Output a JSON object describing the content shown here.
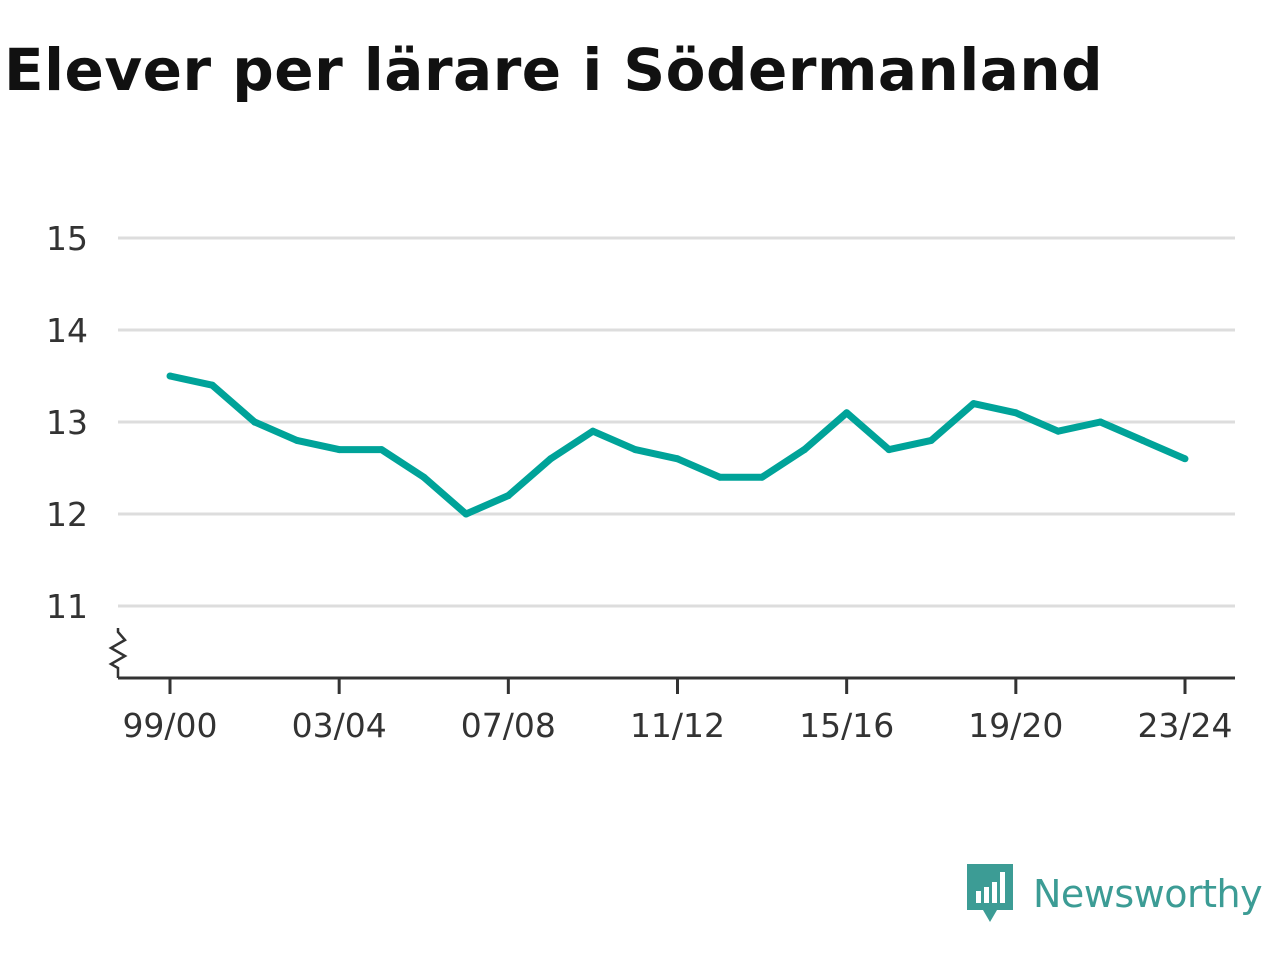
{
  "chart_data": {
    "type": "line",
    "title": "Elever per lärare i Södermanland",
    "x": [
      "99/00",
      "00/01",
      "01/02",
      "02/03",
      "03/04",
      "04/05",
      "05/06",
      "06/07",
      "07/08",
      "08/09",
      "09/10",
      "10/11",
      "11/12",
      "12/13",
      "13/14",
      "14/15",
      "15/16",
      "16/17",
      "17/18",
      "18/19",
      "19/20",
      "20/21",
      "21/22",
      "22/23",
      "23/24"
    ],
    "x_tick_labels": [
      "99/00",
      "03/04",
      "07/08",
      "11/12",
      "15/16",
      "19/20",
      "23/24"
    ],
    "series": [
      {
        "values": [
          13.5,
          13.4,
          13.0,
          12.8,
          12.7,
          12.7,
          12.4,
          12.0,
          12.2,
          12.6,
          12.9,
          12.7,
          12.6,
          12.4,
          12.4,
          12.7,
          13.1,
          12.7,
          12.8,
          13.2,
          13.1,
          12.9,
          13.0,
          12.8,
          12.6
        ]
      }
    ],
    "y_ticks": [
      11,
      12,
      13,
      14,
      15
    ],
    "ylim": [
      10.2,
      15
    ],
    "y_axis_break": true,
    "grid": true,
    "line_color": "#00a399",
    "xlabel": "",
    "ylabel": ""
  },
  "brand": {
    "name": "Newsworthy",
    "icon": "newsworthy-logo-icon",
    "color": "#3c9c95"
  }
}
